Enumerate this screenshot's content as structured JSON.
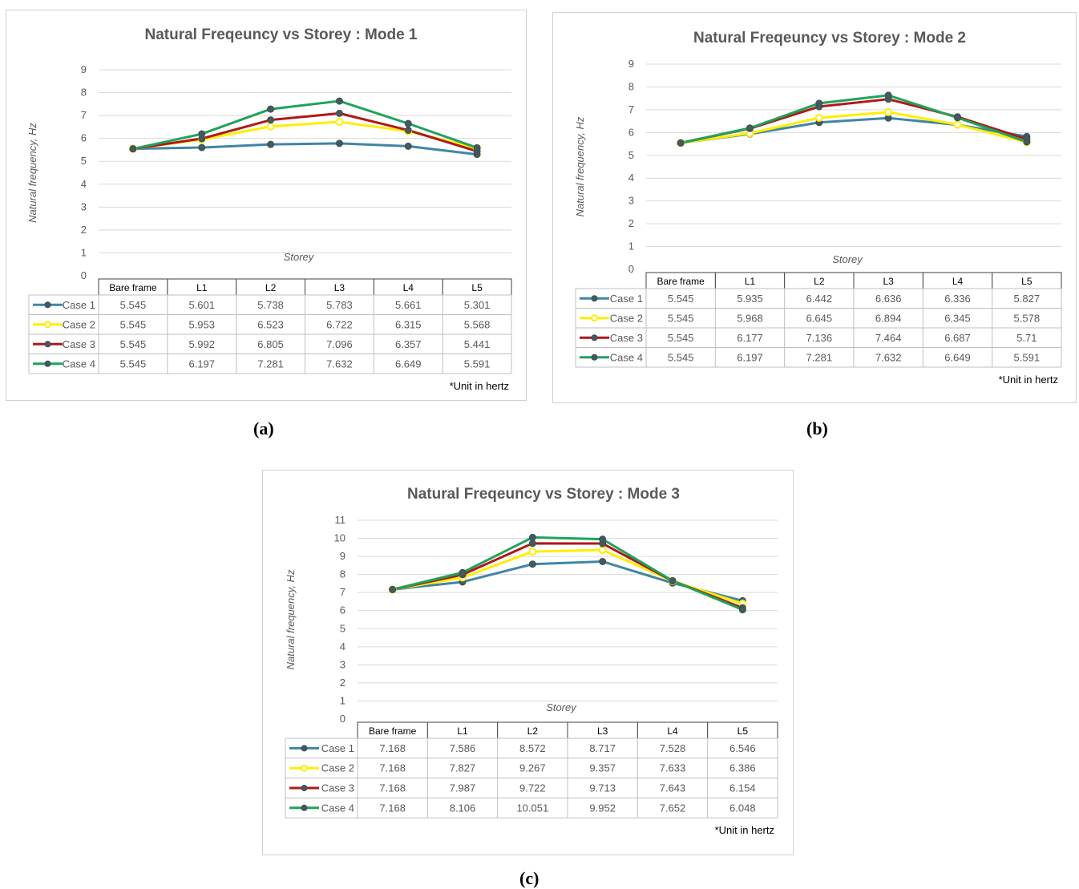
{
  "captions": [
    "(a)",
    "(b)",
    "(c)"
  ],
  "chart_data": [
    {
      "type": "line",
      "title": "Natural Freqeuncy vs Storey : Mode 1",
      "xlabel": "Storey",
      "ylabel": "Natural frequency, Hz",
      "ylim": [
        0,
        9
      ],
      "yticks": [
        "0",
        "1",
        "2",
        "3",
        "4",
        "5",
        "6",
        "7",
        "8",
        "9"
      ],
      "categories": [
        "Bare frame",
        "L1",
        "L2",
        "L3",
        "L4",
        "L5"
      ],
      "series": [
        {
          "name": "Case 1",
          "color": "#3f86a6",
          "marker": "filled",
          "values": [
            5.545,
            5.601,
            5.738,
            5.783,
            5.661,
            5.301
          ],
          "labels": [
            "5.545",
            "5.601",
            "5.738",
            "5.783",
            "5.661",
            "5.301"
          ]
        },
        {
          "name": "Case 2",
          "color": "#ffee00",
          "marker": "hollow",
          "values": [
            5.545,
            5.953,
            6.523,
            6.722,
            6.315,
            5.568
          ],
          "labels": [
            "5.545",
            "5.953",
            "6.523",
            "6.722",
            "6.315",
            "5.568"
          ]
        },
        {
          "name": "Case 3",
          "color": "#b01818",
          "marker": "filled",
          "values": [
            5.545,
            5.992,
            6.805,
            7.096,
            6.357,
            5.441
          ],
          "labels": [
            "5.545",
            "5.992",
            "6.805",
            "7.096",
            "6.357",
            "5.441"
          ]
        },
        {
          "name": "Case 4",
          "color": "#1ea35b",
          "marker": "filled",
          "values": [
            5.545,
            6.197,
            7.281,
            7.632,
            6.649,
            5.591
          ],
          "labels": [
            "5.545",
            "6.197",
            "7.281",
            "7.632",
            "6.649",
            "5.591"
          ]
        }
      ],
      "grid": true,
      "legend": "data-table",
      "note": "*Unit in hertz"
    },
    {
      "type": "line",
      "title": "Natural Freqeuncy vs Storey : Mode 2",
      "xlabel": "Storey",
      "ylabel": "Natural frequency, Hz",
      "ylim": [
        0,
        9
      ],
      "yticks": [
        "0",
        "1",
        "2",
        "3",
        "4",
        "5",
        "6",
        "7",
        "8",
        "9"
      ],
      "categories": [
        "Bare frame",
        "L1",
        "L2",
        "L3",
        "L4",
        "L5"
      ],
      "series": [
        {
          "name": "Case 1",
          "color": "#3f86a6",
          "marker": "filled",
          "values": [
            5.545,
            5.935,
            6.442,
            6.636,
            6.336,
            5.827
          ],
          "labels": [
            "5.545",
            "5.935",
            "6.442",
            "6.636",
            "6.336",
            "5.827"
          ]
        },
        {
          "name": "Case 2",
          "color": "#ffee00",
          "marker": "hollow",
          "values": [
            5.545,
            5.968,
            6.645,
            6.894,
            6.345,
            5.578
          ],
          "labels": [
            "5.545",
            "5.968",
            "6.645",
            "6.894",
            "6.345",
            "5.578"
          ]
        },
        {
          "name": "Case 3",
          "color": "#b01818",
          "marker": "filled",
          "values": [
            5.545,
            6.177,
            7.136,
            7.464,
            6.687,
            5.71
          ],
          "labels": [
            "5.545",
            "6.177",
            "7.136",
            "7.464",
            "6.687",
            "5.71"
          ]
        },
        {
          "name": "Case 4",
          "color": "#1ea35b",
          "marker": "filled",
          "values": [
            5.545,
            6.197,
            7.281,
            7.632,
            6.649,
            5.591
          ],
          "labels": [
            "5.545",
            "6.197",
            "7.281",
            "7.632",
            "6.649",
            "5.591"
          ]
        }
      ],
      "grid": true,
      "legend": "data-table",
      "note": "*Unit in hertz"
    },
    {
      "type": "line",
      "title": "Natural Freqeuncy vs Storey : Mode 3",
      "xlabel": "Storey",
      "ylabel": "Natural frequency, Hz",
      "ylim": [
        0,
        11
      ],
      "yticks": [
        "0",
        "1",
        "2",
        "3",
        "4",
        "5",
        "6",
        "7",
        "8",
        "9",
        "10",
        "11"
      ],
      "categories": [
        "Bare frame",
        "L1",
        "L2",
        "L3",
        "L4",
        "L5"
      ],
      "series": [
        {
          "name": "Case 1",
          "color": "#3f86a6",
          "marker": "filled",
          "values": [
            7.168,
            7.586,
            8.572,
            8.717,
            7.528,
            6.546
          ],
          "labels": [
            "7.168",
            "7.586",
            "8.572",
            "8.717",
            "7.528",
            "6.546"
          ]
        },
        {
          "name": "Case 2",
          "color": "#ffee00",
          "marker": "hollow",
          "values": [
            7.168,
            7.827,
            9.267,
            9.357,
            7.633,
            6.386
          ],
          "labels": [
            "7.168",
            "7.827",
            "9.267",
            "9.357",
            "7.633",
            "6.386"
          ]
        },
        {
          "name": "Case 3",
          "color": "#b01818",
          "marker": "filled",
          "values": [
            7.168,
            7.987,
            9.722,
            9.713,
            7.643,
            6.154
          ],
          "labels": [
            "7.168",
            "7.987",
            "9.722",
            "9.713",
            "7.643",
            "6.154"
          ]
        },
        {
          "name": "Case 4",
          "color": "#1ea35b",
          "marker": "filled",
          "values": [
            7.168,
            8.106,
            10.051,
            9.952,
            7.652,
            6.048
          ],
          "labels": [
            "7.168",
            "8.106",
            "10.051",
            "9.952",
            "7.652",
            "6.048"
          ]
        }
      ],
      "grid": true,
      "legend": "data-table",
      "note": "*Unit in hertz"
    }
  ]
}
